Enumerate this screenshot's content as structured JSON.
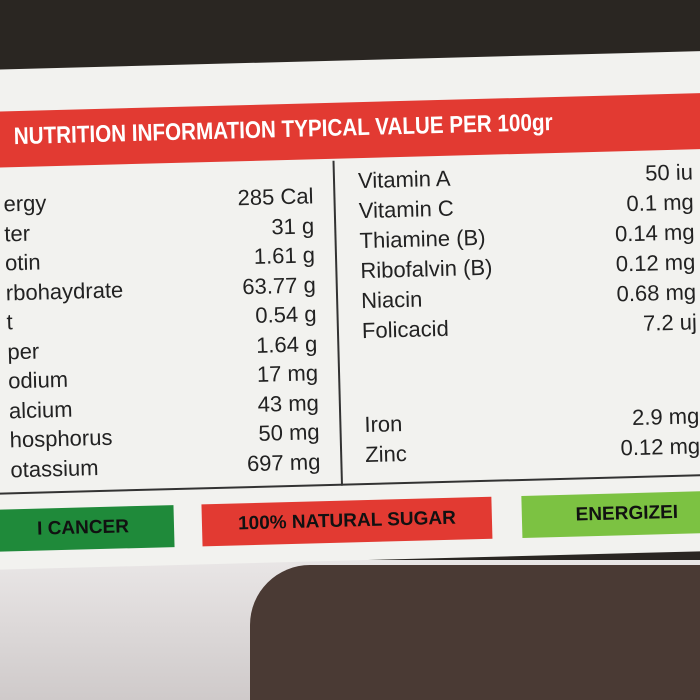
{
  "banner": {
    "title": "NUTRITION INFORMATION TYPICAL VALUE PER 100gr"
  },
  "table": {
    "left_rows": [
      [
        "ergy",
        "285 Cal"
      ],
      [
        "ter",
        "31 g"
      ],
      [
        "otin",
        "1.61 g"
      ],
      [
        "rbohaydrate",
        "63.77 g"
      ],
      [
        "t",
        "0.54 g"
      ],
      [
        "per",
        "1.64 g"
      ],
      [
        "odium",
        "17 mg"
      ],
      [
        "alcium",
        "43 mg"
      ],
      [
        "hosphorus",
        "50 mg"
      ],
      [
        "otassium",
        "697 mg"
      ]
    ],
    "right_rows": [
      [
        "Vitamin A",
        "50 iu"
      ],
      [
        "Vitamin C",
        "0.1 mg"
      ],
      [
        "Thiamine (B)",
        "0.14 mg"
      ],
      [
        "Ribofalvin (B)",
        "0.12 mg"
      ],
      [
        "Niacin",
        "0.68 mg"
      ],
      [
        "Folicacid",
        "7.2 uj"
      ]
    ],
    "mineral_rows": [
      [
        "Iron",
        "2.9 mg"
      ],
      [
        "Zinc",
        "0.12 mg"
      ]
    ]
  },
  "badges": [
    "I CANCER",
    "100% NATURAL SUGAR",
    "ENERGIZEI"
  ]
}
